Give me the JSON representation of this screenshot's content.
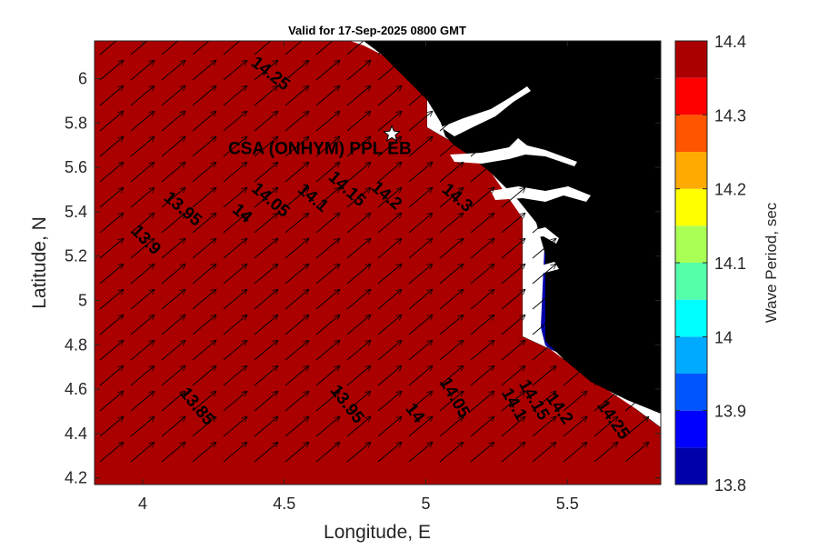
{
  "title": "Valid for 17-Sep-2025 0800 GMT",
  "map": {
    "xlabel": "Longitude, E",
    "ylabel": "Latitude, N",
    "xlim": [
      3.83,
      5.83
    ],
    "ylim": [
      4.17,
      6.17
    ],
    "xticks": [
      4,
      4.5,
      5,
      5.5
    ],
    "xtick_labels": [
      "4",
      "4.5",
      "5",
      "5.5"
    ],
    "yticks": [
      4.2,
      4.4,
      4.6,
      4.8,
      5,
      5.2,
      5.4,
      5.6,
      5.8,
      6
    ],
    "ytick_labels": [
      "4.2",
      "4.4",
      "4.6",
      "4.8",
      "5",
      "5.2",
      "5.4",
      "5.6",
      "5.8",
      "6"
    ],
    "station": {
      "name": "CSA (ONHYM) PPL EB",
      "lon": 4.88,
      "lat": 5.75,
      "marker": "white-star"
    },
    "land_color": "#000000",
    "contour_labels": [
      {
        "text": "14.25",
        "lon": 4.45,
        "lat": 6.02,
        "angle": 38
      },
      {
        "text": "14.2",
        "lon": 4.86,
        "lat": 5.47,
        "angle": 40
      },
      {
        "text": "14.15",
        "lon": 4.72,
        "lat": 5.5,
        "angle": 42
      },
      {
        "text": "14.3",
        "lon": 5.11,
        "lat": 5.46,
        "angle": 40
      },
      {
        "text": "14.1",
        "lon": 4.6,
        "lat": 5.46,
        "angle": 40
      },
      {
        "text": "14.05",
        "lon": 4.45,
        "lat": 5.45,
        "angle": 40
      },
      {
        "text": "14",
        "lon": 4.35,
        "lat": 5.39,
        "angle": 40
      },
      {
        "text": "13.95",
        "lon": 4.14,
        "lat": 5.41,
        "angle": 40
      },
      {
        "text": "13.9",
        "lon": 4.01,
        "lat": 5.27,
        "angle": 45
      },
      {
        "text": "13.85",
        "lon": 4.19,
        "lat": 4.52,
        "angle": 50
      },
      {
        "text": "13.95",
        "lon": 4.72,
        "lat": 4.53,
        "angle": 52
      },
      {
        "text": "14",
        "lon": 4.96,
        "lat": 4.49,
        "angle": 52
      },
      {
        "text": "14.05",
        "lon": 5.1,
        "lat": 4.56,
        "angle": 60
      },
      {
        "text": "14.1",
        "lon": 5.31,
        "lat": 4.53,
        "angle": 60
      },
      {
        "text": "14.15",
        "lon": 5.38,
        "lat": 4.55,
        "angle": 60
      },
      {
        "text": "14.2",
        "lon": 5.47,
        "lat": 4.51,
        "angle": 55
      },
      {
        "text": "14.25",
        "lon": 5.66,
        "lat": 4.46,
        "angle": 55
      }
    ],
    "arrow_direction_deg_math": 40
  },
  "colorbar": {
    "label": "Wave Period, sec",
    "range": [
      13.8,
      14.4
    ],
    "levels": [
      13.8,
      13.85,
      13.9,
      13.95,
      14.0,
      14.05,
      14.1,
      14.15,
      14.2,
      14.25,
      14.3,
      14.35,
      14.4
    ],
    "colors": [
      "#0000aa",
      "#0000ff",
      "#0055ff",
      "#00aaff",
      "#00ffff",
      "#55ffaa",
      "#aaff55",
      "#ffff00",
      "#ffaa00",
      "#ff5500",
      "#ff0000",
      "#aa0000"
    ],
    "ticks": [
      13.8,
      13.9,
      14.0,
      14.1,
      14.2,
      14.3,
      14.4
    ],
    "tick_labels": [
      "13.8",
      "13.9",
      "14",
      "14.1",
      "14.2",
      "14.3",
      "14.4"
    ]
  }
}
